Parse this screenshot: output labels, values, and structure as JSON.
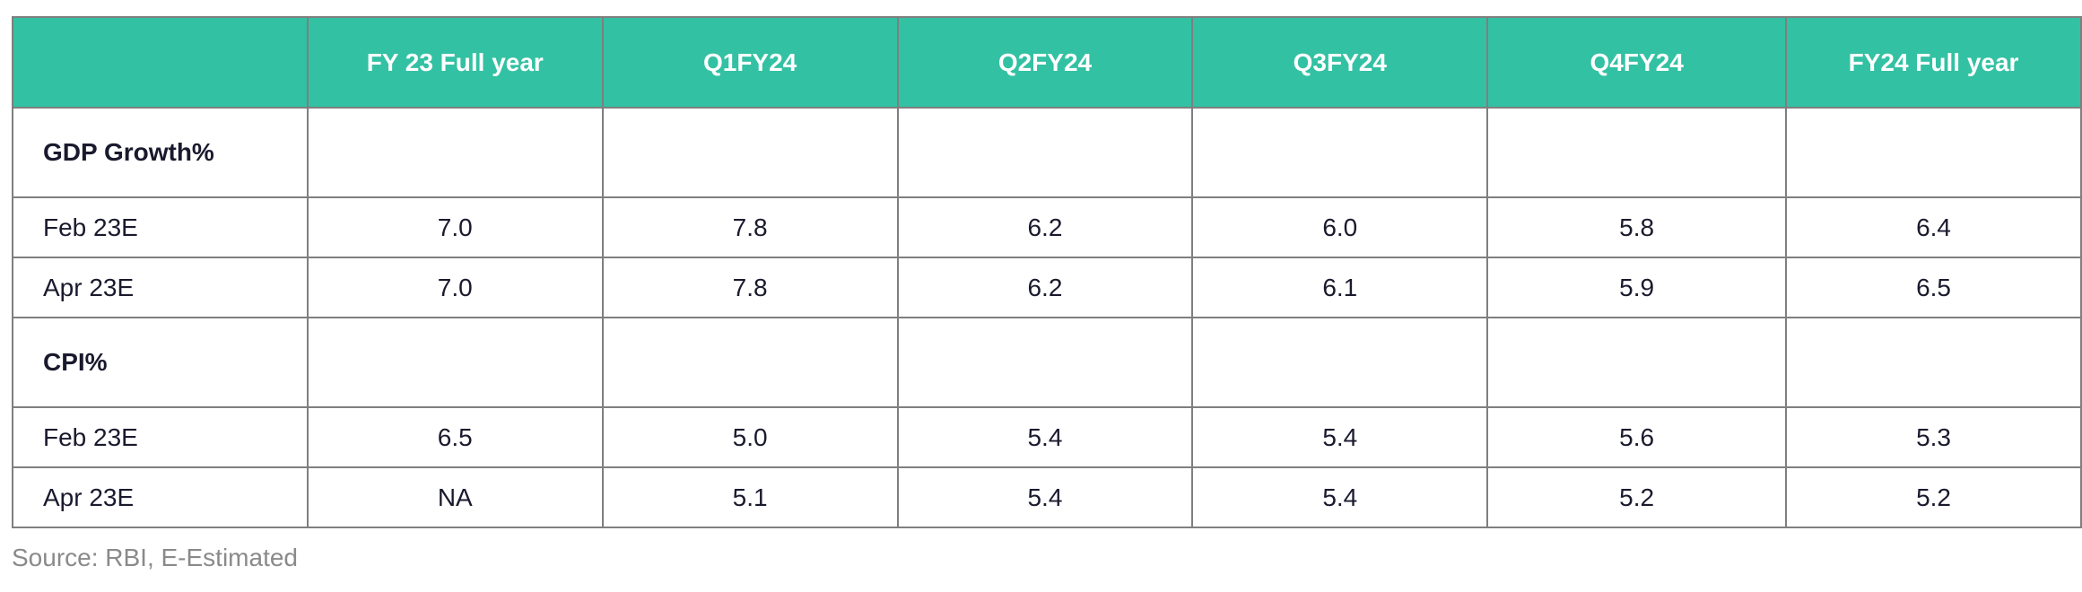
{
  "chart_data": {
    "type": "table",
    "columns": [
      "",
      "FY 23 Full year",
      "Q1FY24",
      "Q2FY24",
      "Q3FY24",
      "Q4FY24",
      "FY24 Full year"
    ],
    "sections": [
      {
        "label": "GDP Growth%",
        "rows": [
          {
            "label": "Feb 23E",
            "values": [
              "7.0",
              "7.8",
              "6.2",
              "6.0",
              "5.8",
              "6.4"
            ]
          },
          {
            "label": "Apr 23E",
            "values": [
              "7.0",
              "7.8",
              "6.2",
              "6.1",
              "5.9",
              "6.5"
            ]
          }
        ]
      },
      {
        "label": "CPI%",
        "rows": [
          {
            "label": "Feb 23E",
            "values": [
              "6.5",
              "5.0",
              "5.4",
              "5.4",
              "5.6",
              "5.3"
            ]
          },
          {
            "label": "Apr 23E",
            "values": [
              "NA",
              "5.1",
              "5.4",
              "5.4",
              "5.2",
              "5.2"
            ]
          }
        ]
      }
    ],
    "header_color": "#33c1a3",
    "grid_color": "#7f7f7f"
  },
  "source_note": "Source: RBI, E-Estimated"
}
